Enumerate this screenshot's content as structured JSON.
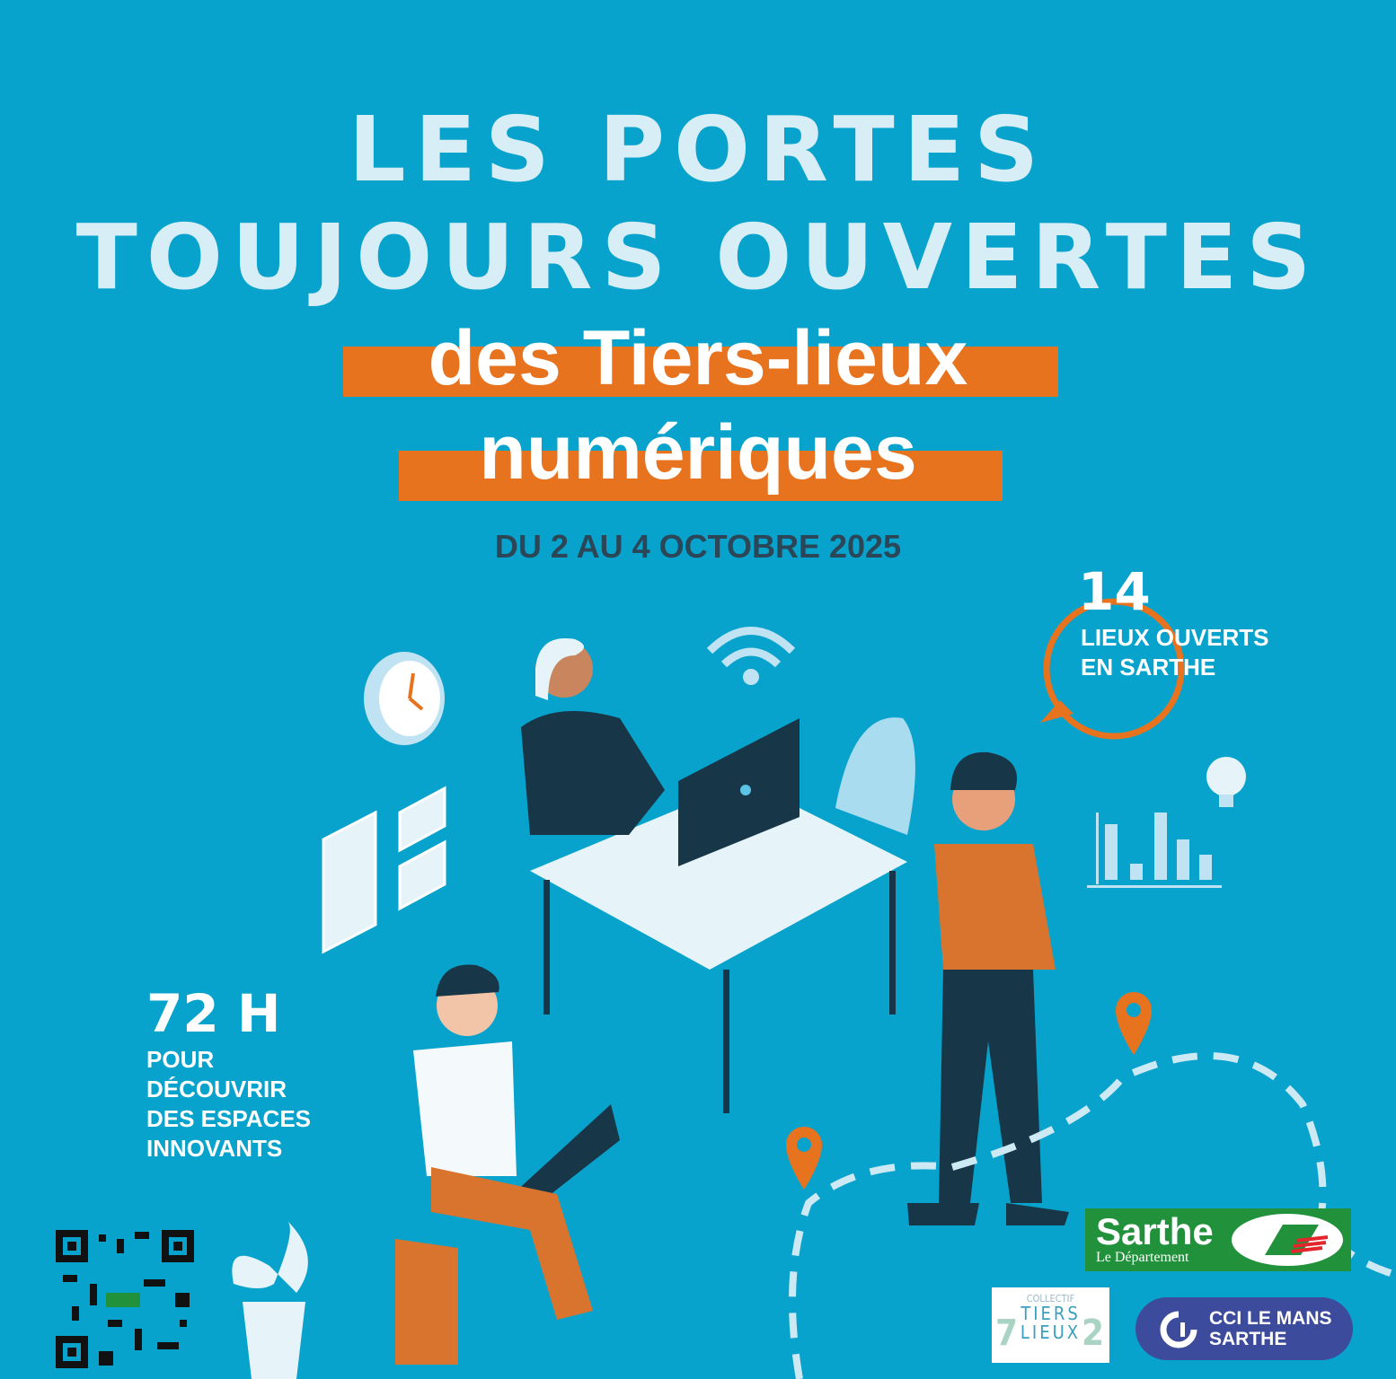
{
  "title": {
    "line1": "LES PORTES",
    "line2": "TOUJOURS OUVERTES",
    "line3": "des Tiers-lieux",
    "line4": "numériques"
  },
  "date": "DU 2 AU 4 OCTOBRE 2025",
  "stats": {
    "places": {
      "number": "14",
      "line1": "LIEUX OUVERTS",
      "line2": "EN SARTHE"
    },
    "hours": {
      "number": "72 H",
      "lines": [
        "POUR",
        "DÉCOUVRIR",
        "DES ESPACES",
        "INNOVANTS"
      ]
    }
  },
  "logos": {
    "sarthe": {
      "name": "Sarthe",
      "sub": "Le Département"
    },
    "tiers_lieux": {
      "top": "COLLECTIF",
      "mid": "TIERS",
      "bottom": "LIEUX",
      "left": "7",
      "right": "2"
    },
    "cci": {
      "line1": "CCI LE MANS",
      "line2": "SARTHE"
    }
  },
  "colors": {
    "background": "#08a3cd",
    "accent": "#e8731f",
    "title": "#d8eef7",
    "date": "#2b4656"
  }
}
